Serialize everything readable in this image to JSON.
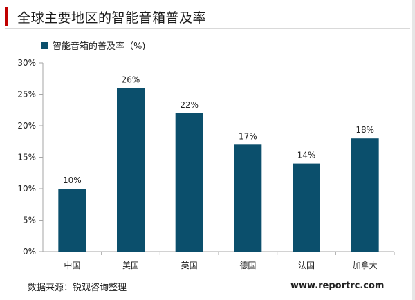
{
  "colors": {
    "bar": "#0b4f6c",
    "accent": "#c00000",
    "axis": "#a6a6a6",
    "text": "#222222"
  },
  "chart_data": {
    "type": "bar",
    "title": "全球主要地区的智能音箱普及率",
    "categories": [
      "中国",
      "美国",
      "英国",
      "德国",
      "法国",
      "加拿大"
    ],
    "series": [
      {
        "name": "智能音箱的普及率（%)",
        "values": [
          10,
          26,
          22,
          17,
          14,
          18
        ]
      }
    ],
    "data_labels": [
      "10%",
      "26%",
      "22%",
      "17%",
      "14%",
      "18%"
    ],
    "y_ticks": [
      "0%",
      "5%",
      "10%",
      "15%",
      "20%",
      "25%",
      "30%"
    ],
    "ylim": [
      0,
      30
    ],
    "grid": false,
    "legend_position": "top-left"
  },
  "footer": {
    "source": "数据来源：锐观咨询整理",
    "website": "www.reportrc.com"
  }
}
